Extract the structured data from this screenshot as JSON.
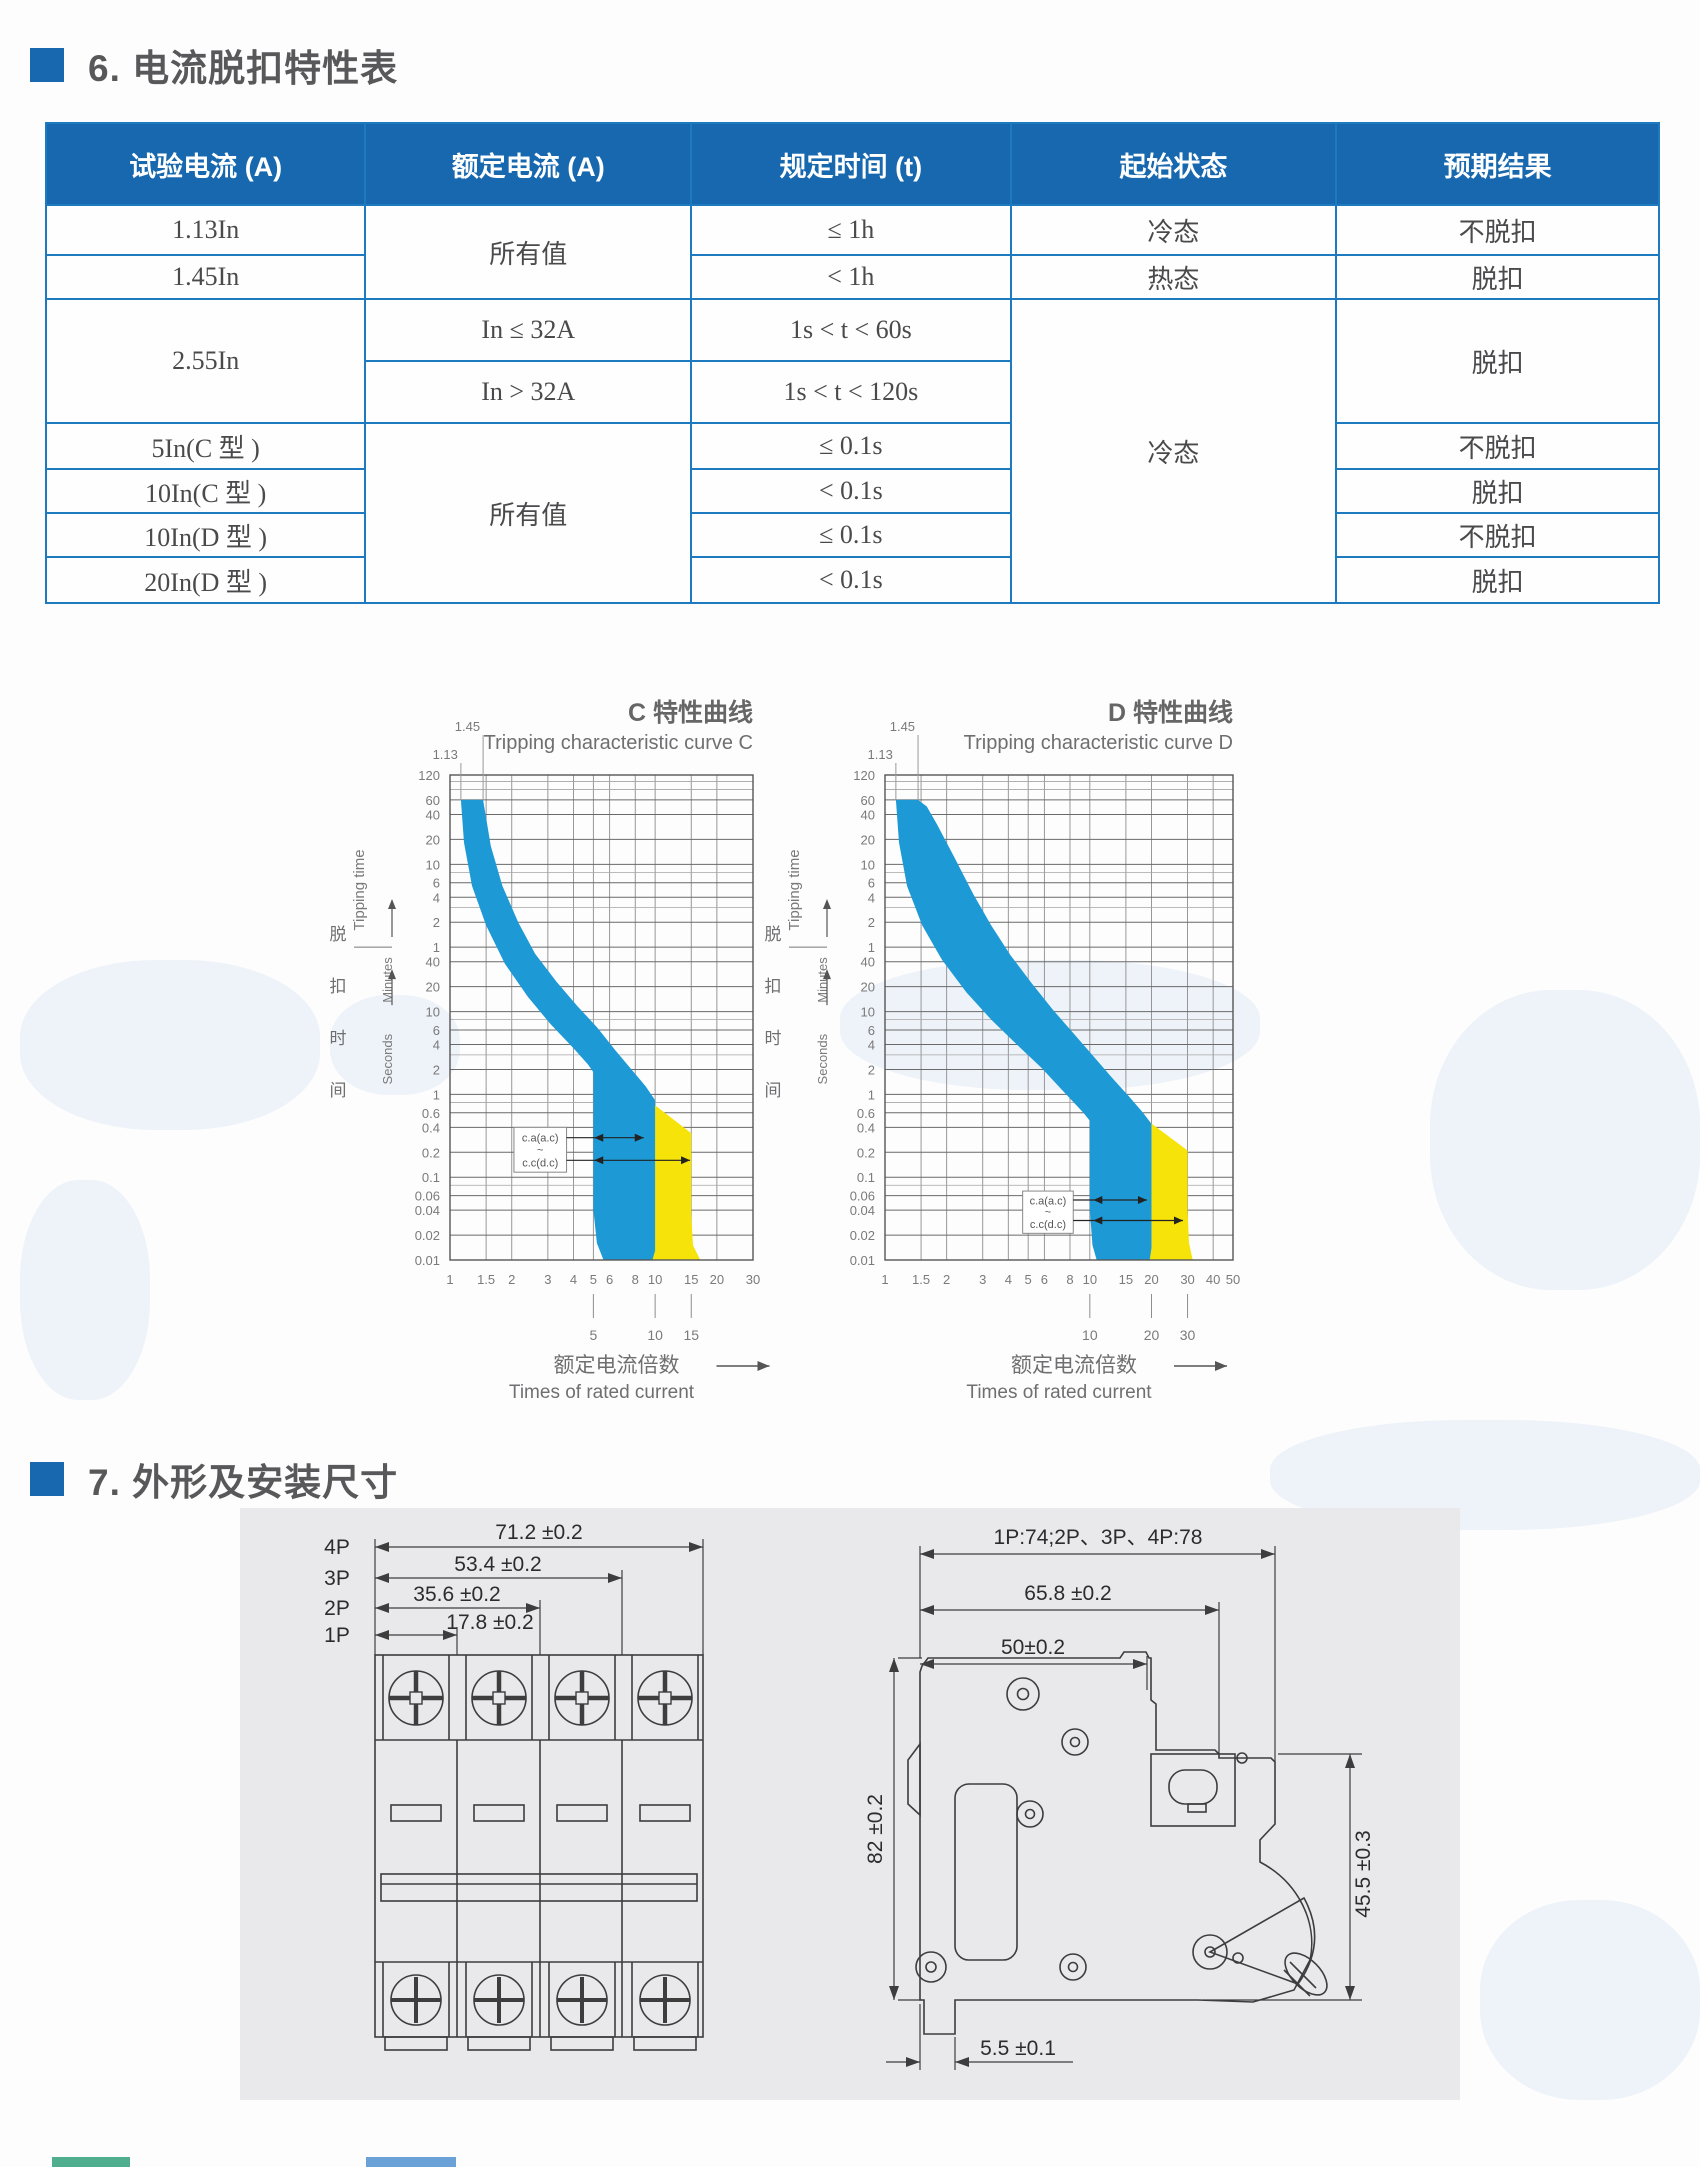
{
  "page": {
    "section6_title": "6. 电流脱扣特性表",
    "section7_title": "7. 外形及安装尺寸"
  },
  "table": {
    "headers": [
      "试验电流 (A)",
      "额定电流 (A)",
      "规定时间 (t)",
      "起始状态",
      "预期结果"
    ],
    "cells": {
      "r1c1": "1.13In",
      "r12_rated": "所有值",
      "r1_time": "≤ 1h",
      "r1_state": "冷态",
      "r1_result": "不脱扣",
      "r2c1": "1.45In",
      "r2_time": "< 1h",
      "r2_state": "热态",
      "r2_result": "脱扣",
      "r34_test": "2.55In",
      "r3_rated": "In ≤ 32A",
      "r3_time": "1s < t < 60s",
      "r38_state": "冷态",
      "r34_result": "脱扣",
      "r4_rated": "In > 32A",
      "r4_time": "1s < t < 120s",
      "r5c1": "5In(C 型 )",
      "r58_rated": "所有值",
      "r5_time": "≤ 0.1s",
      "r5_result": "不脱扣",
      "r6c1": "10In(C 型 )",
      "r6_time": "< 0.1s",
      "r6_result": "脱扣",
      "r7c1": "10In(D 型 )",
      "r7_time": "≤ 0.1s",
      "r7_result": "不脱扣",
      "r8c1": "20In(D 型 )",
      "r8_time": "< 0.1s",
      "r8_result": "脱扣"
    }
  },
  "chart_data": [
    {
      "id": "C",
      "type": "area",
      "title": "C 特性曲线",
      "subtitle": "Tripping characteristic curve C",
      "ylabel_cn": "脱扣时间",
      "ylabel_en": "Tipping time",
      "y_unit_labels": [
        "Minutes",
        "Seconds"
      ],
      "xlabel_cn": "额定电流倍数",
      "xlabel_en": "Times of rated current",
      "x_domain": [
        1,
        30
      ],
      "x_ticks": [
        1,
        1.5,
        2,
        3,
        4,
        5,
        6,
        8,
        10,
        15,
        20,
        30
      ],
      "x_subticks": [
        5,
        10,
        15
      ],
      "y_domain_seconds": [
        0.01,
        7200
      ],
      "y_ticks_minutes": [
        120,
        60,
        40,
        20,
        10,
        6,
        4,
        2,
        1
      ],
      "y_ticks_seconds": [
        40,
        20,
        10,
        6,
        4,
        2,
        1,
        0.6,
        0.4,
        0.2,
        0.1,
        0.06,
        0.04,
        0.02,
        0.01
      ],
      "y_extra_lines_seconds": [
        6000,
        4800,
        480,
        180,
        8,
        3,
        0.8,
        0.08
      ],
      "marker_lines": [
        1.45,
        1.13
      ],
      "band_ac_color": "#1d9ad6",
      "band_dc_color": "#f6e30a",
      "band_ac": [
        [
          1.13,
          3600
        ],
        [
          1.17,
          1100
        ],
        [
          1.28,
          330
        ],
        [
          1.5,
          110
        ],
        [
          1.85,
          38
        ],
        [
          2.4,
          15
        ],
        [
          3.1,
          7
        ],
        [
          4,
          3.6
        ],
        [
          4.7,
          2.3
        ],
        [
          5,
          1.85
        ],
        [
          5,
          0.04
        ],
        [
          5.2,
          0.016
        ],
        [
          5.6,
          0.01
        ],
        [
          9.7,
          0.01
        ],
        [
          10,
          0.013
        ],
        [
          10,
          0.85
        ],
        [
          9,
          1.25
        ],
        [
          7.8,
          1.9
        ],
        [
          6.4,
          3.4
        ],
        [
          5.2,
          6.5
        ],
        [
          4.2,
          11.5
        ],
        [
          3.3,
          23
        ],
        [
          2.6,
          50
        ],
        [
          2.15,
          120
        ],
        [
          1.8,
          330
        ],
        [
          1.58,
          1000
        ],
        [
          1.45,
          3600
        ]
      ],
      "band_dc": [
        [
          9.7,
          0.78
        ],
        [
          15,
          0.34
        ],
        [
          15,
          0.035
        ],
        [
          15.3,
          0.015
        ],
        [
          16.6,
          0.01
        ],
        [
          9.7,
          0.01
        ]
      ],
      "range_box": {
        "x1": 2.05,
        "x2": 3.7,
        "y_top": 0.4,
        "y_bottom": 0.115,
        "labels": [
          "c.a(a.c)",
          "~",
          "c.c(d.c)"
        ],
        "arrows": [
          {
            "y": 0.3,
            "x_head_left": 5.05,
            "x_end": 8.8
          },
          {
            "y": 0.16,
            "x_head_left": 5.05,
            "x_end": 14.8
          }
        ]
      }
    },
    {
      "id": "D",
      "type": "area",
      "title": "D 特性曲线",
      "subtitle": "Tripping characteristic curve D",
      "ylabel_cn": "脱扣时间",
      "ylabel_en": "Tipping time",
      "y_unit_labels": [
        "Minutes",
        "Seconds"
      ],
      "xlabel_cn": "额定电流倍数",
      "xlabel_en": "Times of rated current",
      "x_domain": [
        1,
        50
      ],
      "x_ticks": [
        1,
        1.5,
        2,
        3,
        4,
        5,
        6,
        8,
        10,
        15,
        20,
        30,
        40,
        50
      ],
      "x_subticks": [
        10,
        20,
        30
      ],
      "y_domain_seconds": [
        0.01,
        7200
      ],
      "y_ticks_minutes": [
        120,
        60,
        40,
        20,
        10,
        6,
        4,
        2,
        1
      ],
      "y_ticks_seconds": [
        40,
        20,
        10,
        6,
        4,
        2,
        1,
        0.6,
        0.4,
        0.2,
        0.1,
        0.06,
        0.04,
        0.02,
        0.01
      ],
      "y_extra_lines_seconds": [
        6000,
        4800,
        480,
        180,
        8,
        3,
        0.8,
        0.08
      ],
      "marker_lines": [
        1.45,
        1.13
      ],
      "band_ac_color": "#1d9ad6",
      "band_dc_color": "#f6e30a",
      "band_ac": [
        [
          1.13,
          3600
        ],
        [
          1.17,
          1100
        ],
        [
          1.28,
          330
        ],
        [
          1.52,
          110
        ],
        [
          1.9,
          42
        ],
        [
          2.5,
          17
        ],
        [
          3.3,
          8
        ],
        [
          4.4,
          4
        ],
        [
          5.8,
          2.1
        ],
        [
          7.4,
          1.1
        ],
        [
          9.3,
          0.6
        ],
        [
          10,
          0.48
        ],
        [
          10,
          0.04
        ],
        [
          10.3,
          0.015
        ],
        [
          10.8,
          0.01
        ],
        [
          19.6,
          0.01
        ],
        [
          20,
          0.014
        ],
        [
          20,
          0.44
        ],
        [
          18,
          0.62
        ],
        [
          15.5,
          0.95
        ],
        [
          12.8,
          1.6
        ],
        [
          10.4,
          2.9
        ],
        [
          8.3,
          5.5
        ],
        [
          6.6,
          10.5
        ],
        [
          5.2,
          22
        ],
        [
          4.1,
          48
        ],
        [
          3.3,
          110
        ],
        [
          2.7,
          260
        ],
        [
          2.2,
          700
        ],
        [
          1.8,
          1800
        ],
        [
          1.6,
          3000
        ],
        [
          1.45,
          3600
        ]
      ],
      "band_dc": [
        [
          19.6,
          0.46
        ],
        [
          30,
          0.21
        ],
        [
          30,
          0.04
        ],
        [
          30.5,
          0.016
        ],
        [
          31.8,
          0.01
        ],
        [
          19.6,
          0.01
        ]
      ],
      "range_box": {
        "x1": 4.7,
        "x2": 8.3,
        "y_top": 0.068,
        "y_bottom": 0.021,
        "labels": [
          "c.a(a.c)",
          "~",
          "c.c(d.c)"
        ],
        "arrows": [
          {
            "y": 0.053,
            "x_head_left": 10.4,
            "x_end": 19
          },
          {
            "y": 0.03,
            "x_head_left": 10.4,
            "x_end": 28.5
          }
        ]
      }
    }
  ],
  "drawings": {
    "front": {
      "pole_labels": [
        "4P",
        "3P",
        "2P",
        "1P"
      ],
      "dims": [
        "71.2 ±0.2",
        "53.4 ±0.2",
        "35.6 ±0.2",
        "17.8 ±0.2"
      ]
    },
    "side": {
      "dim_top": "1P:74;2P、3P、4P:78",
      "dim_mid": "65.8 ±0.2",
      "dim_inner": "50±0.2",
      "dim_left": "82 ±0.2",
      "dim_right": "45.5 ±0.3",
      "dim_bottom": "5.5 ±0.1"
    }
  }
}
